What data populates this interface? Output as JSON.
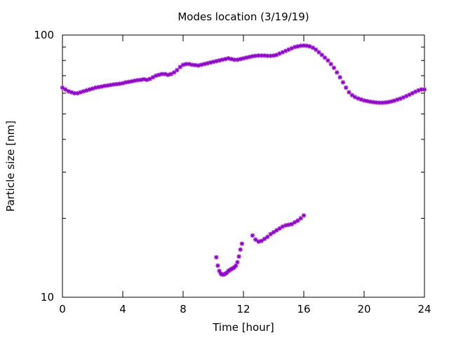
{
  "chart_data": {
    "type": "scatter",
    "title": "Modes location (3/19/19)",
    "xlabel": "Time [hour]",
    "ylabel": "Particle size [nm]",
    "xlim": [
      0,
      24
    ],
    "ylim": [
      10,
      100
    ],
    "yscale": "log",
    "xticks": [
      0,
      4,
      8,
      12,
      16,
      20,
      24
    ],
    "xtick_labels": [
      "0",
      "4",
      "8",
      "12",
      "16",
      "20",
      "24"
    ],
    "yticks_major": [
      10,
      100
    ],
    "ytick_labels": [
      "10",
      "100"
    ],
    "yticks_minor": [
      20,
      30,
      40,
      50,
      60,
      70,
      80,
      90
    ],
    "grid": false,
    "marker": "asterisk",
    "color": "#9400d3",
    "series": [
      {
        "x": [
          0.0,
          0.2,
          0.4,
          0.6,
          0.8,
          1.0,
          1.2,
          1.4,
          1.6,
          1.8,
          2.0,
          2.2,
          2.4,
          2.6,
          2.8,
          3.0,
          3.2,
          3.4,
          3.6,
          3.8,
          4.0,
          4.2,
          4.4,
          4.6,
          4.8,
          5.0,
          5.2,
          5.4,
          5.6,
          5.8,
          6.0,
          6.2,
          6.4,
          6.6,
          6.8,
          7.0,
          7.2,
          7.4,
          7.6,
          7.8,
          8.0,
          8.2,
          8.4,
          8.6,
          8.8,
          9.0,
          9.2,
          9.4,
          9.6,
          9.8,
          10.0,
          10.2,
          10.4,
          10.6,
          10.8,
          11.0,
          11.2,
          11.4,
          11.6,
          11.8,
          12.0,
          12.2,
          12.4,
          12.6,
          12.8,
          13.0,
          13.2,
          13.4,
          13.6,
          13.8,
          14.0,
          14.2,
          14.4,
          14.6,
          14.8,
          15.0,
          15.2,
          15.4,
          15.6,
          15.8,
          16.0,
          16.2,
          16.4,
          16.6,
          16.8,
          17.0,
          17.2,
          17.4,
          17.6,
          17.8,
          18.0,
          18.2,
          18.4,
          18.6,
          18.8,
          19.0,
          19.2,
          19.4,
          19.6,
          19.8,
          20.0,
          20.2,
          20.4,
          20.6,
          20.8,
          21.0,
          21.2,
          21.4,
          21.6,
          21.8,
          22.0,
          22.2,
          22.4,
          22.6,
          22.8,
          23.0,
          23.2,
          23.4,
          23.6,
          23.8,
          24.0
        ],
        "y": [
          63.0,
          62.0,
          61.0,
          60.5,
          60.0,
          60.0,
          60.5,
          61.0,
          61.5,
          62.0,
          62.5,
          63.0,
          63.3,
          63.6,
          64.0,
          64.2,
          64.5,
          64.8,
          65.0,
          65.2,
          65.5,
          66.0,
          66.3,
          66.6,
          67.0,
          67.3,
          67.5,
          67.8,
          67.5,
          68.0,
          69.0,
          70.0,
          70.5,
          71.0,
          71.0,
          70.5,
          71.0,
          72.0,
          73.5,
          75.5,
          77.0,
          77.5,
          77.5,
          77.0,
          76.8,
          76.5,
          77.0,
          77.5,
          78.0,
          78.5,
          79.0,
          79.5,
          80.0,
          80.5,
          81.0,
          81.5,
          81.0,
          80.5,
          80.5,
          81.0,
          81.5,
          82.0,
          82.5,
          83.0,
          83.3,
          83.5,
          83.5,
          83.5,
          83.3,
          83.3,
          83.5,
          84.0,
          85.0,
          86.0,
          87.0,
          88.0,
          89.0,
          90.0,
          90.5,
          91.0,
          91.2,
          91.0,
          90.5,
          89.5,
          88.0,
          86.0,
          84.0,
          82.0,
          80.0,
          77.5,
          75.0,
          72.0,
          69.0,
          66.0,
          63.0,
          60.5,
          59.0,
          58.0,
          57.3,
          56.8,
          56.3,
          56.0,
          55.7,
          55.5,
          55.3,
          55.2,
          55.2,
          55.3,
          55.5,
          55.8,
          56.2,
          56.7,
          57.2,
          57.8,
          58.5,
          59.2,
          60.0,
          60.8,
          61.5,
          62.0,
          62.0
        ]
      },
      {
        "x": [
          10.2,
          10.3,
          10.4,
          10.5,
          10.6,
          10.7,
          10.8,
          10.9,
          11.0,
          11.1,
          11.2,
          11.3,
          11.4,
          11.5,
          11.6,
          11.7,
          11.8,
          11.9
        ],
        "y": [
          14.2,
          13.2,
          12.6,
          12.3,
          12.2,
          12.2,
          12.3,
          12.4,
          12.6,
          12.7,
          12.8,
          12.9,
          13.0,
          13.2,
          13.6,
          14.3,
          15.2,
          16.0
        ]
      },
      {
        "x": [
          12.6,
          12.8,
          13.0,
          13.2,
          13.4,
          13.6,
          13.8,
          14.0,
          14.2,
          14.4,
          14.6,
          14.8,
          15.0,
          15.2,
          15.4,
          15.6,
          15.8,
          16.0
        ],
        "y": [
          17.2,
          16.6,
          16.3,
          16.4,
          16.7,
          17.0,
          17.4,
          17.7,
          18.0,
          18.3,
          18.6,
          18.8,
          18.9,
          19.0,
          19.3,
          19.6,
          20.0,
          20.5
        ]
      }
    ]
  }
}
